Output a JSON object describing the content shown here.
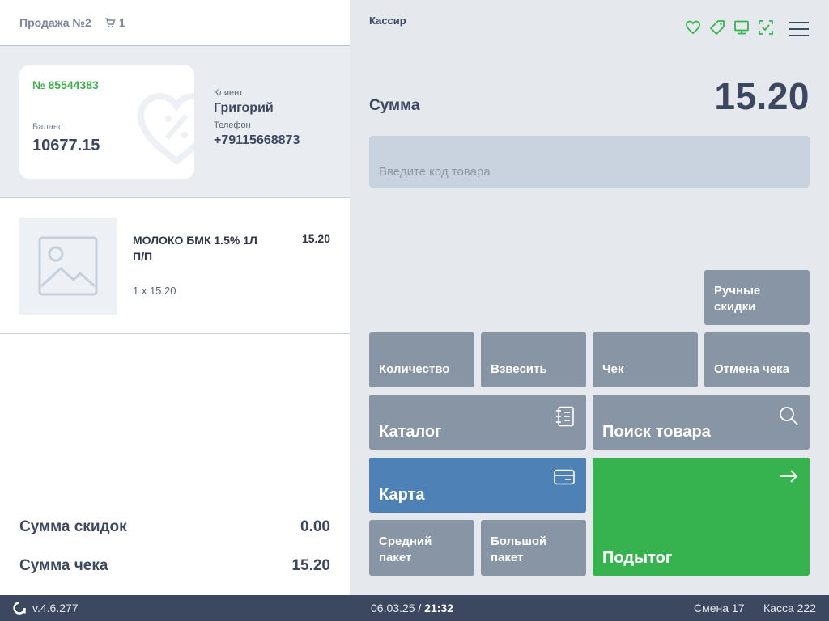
{
  "sale": {
    "title": "Продажа №2",
    "cart_count": "1"
  },
  "card": {
    "number": "№ 85544383",
    "balance_label": "Баланс",
    "balance": "10677.15"
  },
  "client": {
    "client_label": "Клиент",
    "name": "Григорий",
    "phone_label": "Телефон",
    "phone": "+79115668873"
  },
  "item": {
    "name": "МОЛОКО БМК 1.5% 1Л П/П",
    "price": "15.20",
    "qty": "1 x 15.20"
  },
  "totals": {
    "discount_label": "Сумма скидок",
    "discount": "0.00",
    "check_label": "Сумма чека",
    "check": "15.20"
  },
  "header": {
    "cashier": "Кассир"
  },
  "sum": {
    "label": "Сумма",
    "value": "15.20"
  },
  "input": {
    "placeholder": "Введите код товара"
  },
  "buttons": {
    "manual_discounts": "Ручные скидки",
    "quantity": "Количество",
    "weigh": "Взвесить",
    "check": "Чек",
    "cancel_check": "Отмена чека",
    "catalog": "Каталог",
    "search": "Поиск товара",
    "card": "Карта",
    "subtotal": "Подытог",
    "medium_bag": "Средний пакет",
    "large_bag": "Большой пакет"
  },
  "status": {
    "version": "v.4.6.277",
    "date": "06.03.25",
    "time": "21:32",
    "shift": "Смена 17",
    "register": "Касса 222"
  },
  "colors": {
    "accent_green": "#36b34e",
    "card_blue": "#4e82b6",
    "button_gray": "#8795a5",
    "status_bar": "#3c4760"
  }
}
